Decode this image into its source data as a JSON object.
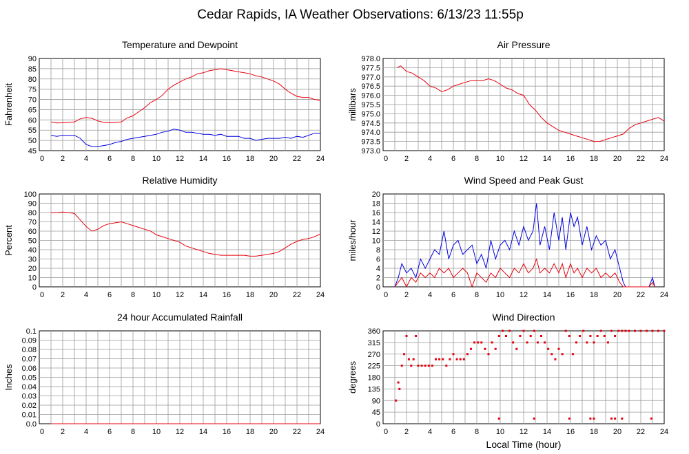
{
  "title": "Cedar Rapids, IA Weather Observations: 6/13/23 11:55p",
  "xlabel": "Local Time (hour)",
  "colors": {
    "series_red": "#e8000b",
    "series_blue": "#0000e0",
    "grid": "#9a9a9a"
  },
  "chart_data": [
    {
      "type": "line",
      "title": "Temperature and Dewpoint",
      "ylabel": "Fahrenheit",
      "xlim": [
        0,
        24
      ],
      "ylim": [
        45,
        90
      ],
      "xticks": [
        2,
        4,
        6,
        8,
        10,
        12,
        14,
        16,
        18,
        20,
        22,
        24
      ],
      "yticks": [
        45,
        50,
        55,
        60,
        65,
        70,
        75,
        80,
        85,
        90
      ],
      "series": [
        {
          "color": "#e8000b",
          "x": [
            1,
            1.5,
            2,
            2.5,
            3,
            3.5,
            4,
            4.5,
            5,
            5.5,
            6,
            6.5,
            7,
            7.5,
            8,
            8.5,
            9,
            9.5,
            10,
            10.5,
            11,
            11.5,
            12,
            12.5,
            13,
            13.5,
            14,
            14.5,
            15,
            15.5,
            16,
            16.5,
            17,
            17.5,
            18,
            18.5,
            19,
            19.5,
            20,
            20.5,
            21,
            21.5,
            22,
            22.5,
            23,
            23.5,
            24
          ],
          "y": [
            59,
            58.5,
            58.6,
            58.8,
            59,
            60.5,
            61.2,
            60.8,
            59.5,
            58.8,
            58.6,
            58.8,
            59,
            61,
            62,
            64,
            66,
            68.5,
            70,
            72,
            75,
            77,
            78.5,
            80,
            81,
            82.5,
            83,
            84,
            84.5,
            85,
            84.5,
            84,
            83.5,
            83,
            82.5,
            81.5,
            81,
            80,
            79,
            77.5,
            75,
            73,
            71.5,
            71,
            71,
            70,
            69.5
          ]
        },
        {
          "color": "#0000e0",
          "x": [
            1,
            1.5,
            2,
            2.5,
            3,
            3.5,
            4,
            4.5,
            5,
            5.5,
            6,
            6.5,
            7,
            7.5,
            8,
            8.5,
            9,
            9.5,
            10,
            10.5,
            11,
            11.5,
            12,
            12.5,
            13,
            13.5,
            14,
            14.5,
            15,
            15.5,
            16,
            16.5,
            17,
            17.5,
            18,
            18.5,
            19,
            19.5,
            20,
            20.5,
            21,
            21.5,
            22,
            22.5,
            23,
            23.5,
            24
          ],
          "y": [
            52.5,
            52,
            52.5,
            52.5,
            52.5,
            51,
            48,
            47,
            47,
            47.5,
            48,
            49,
            49.5,
            50.5,
            51,
            51.5,
            52,
            52.5,
            53,
            54,
            54.5,
            55.5,
            55,
            54,
            54,
            53.5,
            53,
            53,
            52.5,
            53,
            52,
            52,
            52,
            51,
            51,
            50,
            50.5,
            51,
            51,
            51,
            51.5,
            51,
            52,
            51.5,
            52.5,
            53.5,
            53.5
          ]
        }
      ]
    },
    {
      "type": "line",
      "title": "Air Pressure",
      "ylabel": "millibars",
      "xlim": [
        0,
        24
      ],
      "ylim": [
        973.0,
        978.0
      ],
      "xticks": [
        2,
        4,
        6,
        8,
        10,
        12,
        14,
        16,
        18,
        20,
        22,
        24
      ],
      "yticks": [
        "973.0",
        "973.5",
        "974.0",
        "974.5",
        "975.0",
        "975.5",
        "976.0",
        "976.5",
        "977.0",
        "977.5",
        "978.0"
      ],
      "series": [
        {
          "color": "#e8000b",
          "x": [
            1.2,
            1.5,
            2,
            2.5,
            3,
            3.5,
            4,
            4.5,
            5,
            5.5,
            6,
            6.5,
            7,
            7.5,
            8,
            8.5,
            9,
            9.5,
            10,
            10.5,
            11,
            11.5,
            12,
            12.5,
            13,
            13.5,
            14,
            14.5,
            15,
            15.5,
            16,
            16.5,
            17,
            17.5,
            18,
            18.5,
            19,
            19.5,
            20,
            20.5,
            21,
            21.5,
            22,
            22.5,
            23,
            23.5,
            24
          ],
          "y": [
            977.5,
            977.6,
            977.3,
            977.2,
            977.0,
            976.8,
            976.5,
            976.4,
            976.2,
            976.3,
            976.5,
            976.6,
            976.7,
            976.8,
            976.8,
            976.8,
            976.9,
            976.8,
            976.6,
            976.4,
            976.3,
            976.1,
            976.0,
            975.5,
            975.2,
            974.8,
            974.5,
            974.3,
            974.1,
            974.0,
            973.9,
            973.8,
            973.7,
            973.6,
            973.5,
            973.5,
            973.6,
            973.7,
            973.8,
            973.9,
            974.2,
            974.4,
            974.5,
            974.6,
            974.7,
            974.8,
            974.6
          ]
        }
      ]
    },
    {
      "type": "line",
      "title": "Relative Humidity",
      "ylabel": "Percent",
      "xlim": [
        0,
        24
      ],
      "ylim": [
        0,
        100
      ],
      "xticks": [
        2,
        4,
        6,
        8,
        10,
        12,
        14,
        16,
        18,
        20,
        22,
        24
      ],
      "yticks": [
        0,
        10,
        20,
        30,
        40,
        50,
        60,
        70,
        80,
        90,
        100
      ],
      "series": [
        {
          "color": "#e8000b",
          "x": [
            1,
            1.5,
            2,
            2.5,
            3,
            3.5,
            4,
            4.5,
            5,
            5.5,
            6,
            6.5,
            7,
            7.5,
            8,
            8.5,
            9,
            9.5,
            10,
            10.5,
            11,
            11.5,
            12,
            12.5,
            13,
            13.5,
            14,
            14.5,
            15,
            15.5,
            16,
            16.5,
            17,
            17.5,
            18,
            18.5,
            19,
            19.5,
            20,
            20.5,
            21,
            21.5,
            22,
            22.5,
            23,
            23.5,
            24
          ],
          "y": [
            80,
            80,
            80.5,
            80,
            79,
            72,
            65,
            60,
            62,
            66,
            68,
            69,
            70,
            68,
            66,
            64,
            62,
            60,
            56,
            54,
            52,
            50,
            48,
            44,
            42,
            40,
            38,
            36,
            35,
            34,
            34,
            34,
            34,
            34,
            33,
            33,
            34,
            35,
            36,
            38,
            42,
            46,
            49,
            51,
            52,
            54,
            57
          ]
        }
      ]
    },
    {
      "type": "line",
      "title": "Wind Speed and Peak Gust",
      "ylabel": "miles/hour",
      "xlim": [
        0,
        24
      ],
      "ylim": [
        0,
        20
      ],
      "xticks": [
        2,
        4,
        6,
        8,
        10,
        12,
        14,
        16,
        18,
        20,
        22,
        24
      ],
      "yticks": [
        0,
        2,
        4,
        6,
        8,
        10,
        12,
        14,
        16,
        18,
        20
      ],
      "series": [
        {
          "color": "#0000e0",
          "x": [
            1,
            1.3,
            1.6,
            2,
            2.4,
            2.8,
            3.2,
            3.6,
            4,
            4.4,
            4.8,
            5.2,
            5.6,
            6,
            6.4,
            6.8,
            7.2,
            7.6,
            8,
            8.4,
            8.8,
            9.2,
            9.6,
            10,
            10.4,
            10.8,
            11.2,
            11.6,
            12,
            12.4,
            12.8,
            13.1,
            13.4,
            13.8,
            14.2,
            14.6,
            15,
            15.3,
            15.6,
            16,
            16.3,
            16.6,
            17,
            17.4,
            17.8,
            18.2,
            18.6,
            19,
            19.4,
            19.8,
            20.2,
            20.5,
            20.7,
            22.7,
            23,
            23.2
          ],
          "y": [
            0,
            2,
            5,
            3,
            4,
            2,
            6,
            4,
            6,
            8,
            7,
            12,
            6,
            9,
            10,
            7,
            8,
            9,
            5,
            7,
            4,
            10,
            6,
            9,
            10,
            8,
            12,
            9,
            13,
            10,
            12,
            18,
            9,
            13,
            8,
            16,
            10,
            15,
            8,
            16,
            13,
            15,
            9,
            13,
            8,
            11,
            9,
            10,
            6,
            8,
            4,
            1,
            0,
            0,
            2,
            0
          ]
        },
        {
          "color": "#e8000b",
          "x": [
            1,
            1.3,
            1.6,
            2,
            2.4,
            2.8,
            3.2,
            3.6,
            4,
            4.4,
            4.8,
            5.2,
            5.6,
            6,
            6.4,
            6.8,
            7.2,
            7.6,
            8,
            8.4,
            8.8,
            9.2,
            9.6,
            10,
            10.4,
            10.8,
            11.2,
            11.6,
            12,
            12.4,
            12.8,
            13.1,
            13.4,
            13.8,
            14.2,
            14.6,
            15,
            15.3,
            15.6,
            16,
            16.3,
            16.6,
            17,
            17.4,
            17.8,
            18.2,
            18.6,
            19,
            19.4,
            19.8,
            20.2,
            20.5,
            20.7,
            22.7,
            23,
            23.2
          ],
          "y": [
            0,
            1,
            2,
            0,
            2,
            1,
            3,
            2,
            3,
            2,
            4,
            3,
            4,
            2,
            3,
            4,
            3,
            0,
            3,
            2,
            1,
            3,
            2,
            4,
            3,
            2,
            4,
            3,
            5,
            3,
            4,
            6,
            3,
            4,
            3,
            5,
            3,
            5,
            2,
            5,
            3,
            4,
            2,
            4,
            3,
            4,
            2,
            3,
            2,
            3,
            1,
            0,
            0,
            0,
            1,
            0
          ]
        }
      ]
    },
    {
      "type": "line",
      "title": "24 hour Accumulated Rainfall",
      "ylabel": "Inches",
      "xlim": [
        0,
        24
      ],
      "ylim": [
        0.0,
        0.1
      ],
      "xticks": [
        2,
        4,
        6,
        8,
        10,
        12,
        14,
        16,
        18,
        20,
        22,
        24
      ],
      "yticks": [
        "0.0",
        "0.01",
        "0.02",
        "0.03",
        "0.04",
        "0.05",
        "0.06",
        "0.07",
        "0.08",
        "0.09",
        "0.1"
      ],
      "series": [
        {
          "color": "#e8000b",
          "x": [
            1,
            24
          ],
          "y": [
            0,
            0
          ]
        }
      ]
    },
    {
      "type": "scatter",
      "title": "Wind Direction",
      "ylabel": "degrees",
      "xlim": [
        0,
        24
      ],
      "ylim": [
        0,
        360
      ],
      "xticks": [
        2,
        4,
        6,
        8,
        10,
        12,
        14,
        16,
        18,
        20,
        22,
        24
      ],
      "yticks": [
        0,
        45,
        90,
        135,
        180,
        225,
        270,
        315,
        360
      ],
      "series": [
        {
          "color": "#e8000b",
          "x": [
            1.1,
            1.3,
            1.4,
            1.6,
            1.8,
            2.0,
            2.2,
            2.4,
            2.6,
            2.8,
            3.0,
            3.3,
            3.6,
            3.9,
            4.2,
            4.5,
            4.8,
            5.1,
            5.4,
            5.7,
            6.0,
            6.3,
            6.6,
            6.9,
            7.2,
            7.5,
            7.8,
            8.1,
            8.4,
            8.7,
            9.0,
            9.3,
            9.6,
            9.9,
            10.2,
            10.5,
            10.8,
            11.1,
            11.4,
            11.7,
            12.0,
            12.3,
            12.6,
            12.9,
            13.2,
            13.5,
            13.8,
            14.1,
            14.4,
            14.7,
            15.0,
            15.3,
            15.6,
            15.9,
            16.2,
            16.5,
            16.8,
            17.1,
            17.4,
            17.7,
            18.0,
            18.3,
            18.6,
            18.9,
            19.2,
            19.5,
            19.8,
            20.1,
            20.4,
            20.7,
            21.0,
            21.5,
            22.0,
            22.5,
            23.0,
            23.5,
            24.0,
            9.9,
            12.9,
            15.9,
            17.7,
            18.0,
            19.5,
            19.8,
            20.4,
            22.9
          ],
          "y": [
            90,
            160,
            135,
            225,
            270,
            340,
            250,
            225,
            250,
            340,
            225,
            225,
            225,
            225,
            225,
            250,
            250,
            250,
            225,
            250,
            270,
            250,
            250,
            250,
            270,
            290,
            315,
            315,
            315,
            290,
            270,
            315,
            290,
            340,
            360,
            340,
            360,
            315,
            290,
            340,
            360,
            315,
            340,
            360,
            315,
            340,
            315,
            290,
            270,
            250,
            290,
            270,
            360,
            340,
            270,
            315,
            340,
            360,
            315,
            340,
            315,
            340,
            360,
            340,
            315,
            360,
            340,
            360,
            360,
            360,
            360,
            360,
            360,
            360,
            360,
            360,
            360,
            20,
            20,
            20,
            20,
            20,
            20,
            20,
            20,
            20
          ]
        }
      ]
    }
  ]
}
